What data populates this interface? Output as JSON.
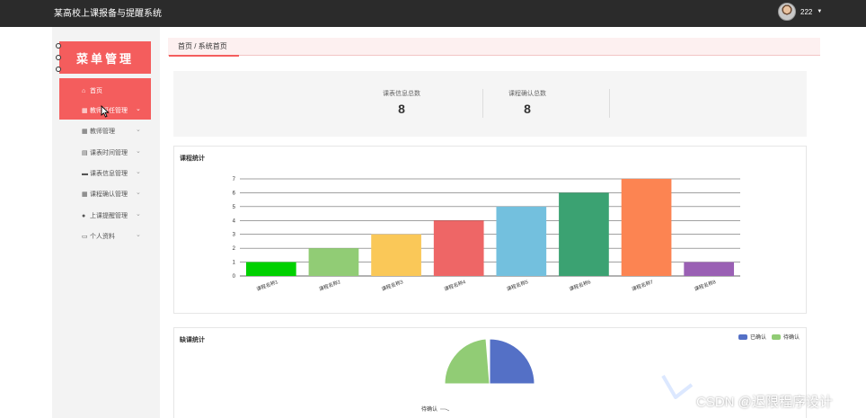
{
  "header": {
    "app_title": "某高校上课报备与提醒系统",
    "username": "222"
  },
  "sidebar": {
    "title": "菜单管理",
    "items": [
      {
        "label": "首页",
        "icon": "home-icon",
        "glyph": "⌂",
        "active": true,
        "has_chevron": false
      },
      {
        "label": "教师班任管理",
        "icon": "grid-icon",
        "glyph": "▦",
        "active": true,
        "has_chevron": true
      },
      {
        "label": "教师管理",
        "icon": "grid-icon",
        "glyph": "▦",
        "active": false,
        "has_chevron": true
      },
      {
        "label": "课表时间管理",
        "icon": "document-icon",
        "glyph": "▤",
        "active": false,
        "has_chevron": true
      },
      {
        "label": "课表信息管理",
        "icon": "car-icon",
        "glyph": "▬",
        "active": false,
        "has_chevron": true
      },
      {
        "label": "课程确认管理",
        "icon": "grid-icon",
        "glyph": "▦",
        "active": false,
        "has_chevron": true
      },
      {
        "label": "上课提醒管理",
        "icon": "location-icon",
        "glyph": "●",
        "active": false,
        "has_chevron": true
      },
      {
        "label": "个人资料",
        "icon": "calendar-icon",
        "glyph": "▭",
        "active": false,
        "has_chevron": true
      }
    ]
  },
  "breadcrumb": {
    "home": "首页",
    "separator": "/",
    "current": "系统首页"
  },
  "stats": [
    {
      "label": "课表信息总数",
      "value": "8"
    },
    {
      "label": "课程确认总数",
      "value": "8"
    }
  ],
  "bar_panel": {
    "title": "课程统计"
  },
  "pie_panel": {
    "title": "缺课统计",
    "slice_label": "待确认",
    "legend": [
      {
        "name": "已确认",
        "color": "#5470c6"
      },
      {
        "name": "待确认",
        "color": "#91cc75"
      }
    ]
  },
  "chart_data": [
    {
      "type": "bar",
      "categories": [
        "课程名称1",
        "课程名称2",
        "课程名称3",
        "课程名称4",
        "课程名称5",
        "课程名称6",
        "课程名称7",
        "课程名称8"
      ],
      "values": [
        1,
        2,
        3,
        4,
        5,
        6,
        7,
        1
      ],
      "colors": [
        "#00d100",
        "#91cc75",
        "#fac858",
        "#ee6666",
        "#73c0de",
        "#3ba272",
        "#fc8452",
        "#9a60b4"
      ],
      "yticks": [
        0,
        1,
        2,
        3,
        4,
        5,
        6,
        7
      ],
      "ylim": [
        0,
        7
      ],
      "title": "课程统计"
    },
    {
      "type": "pie",
      "categories": [
        "已确认",
        "待确认"
      ],
      "colors": [
        "#5470c6",
        "#91cc75"
      ],
      "title": "缺课统计"
    }
  ],
  "watermark": "CSDN @迟限程序设计"
}
